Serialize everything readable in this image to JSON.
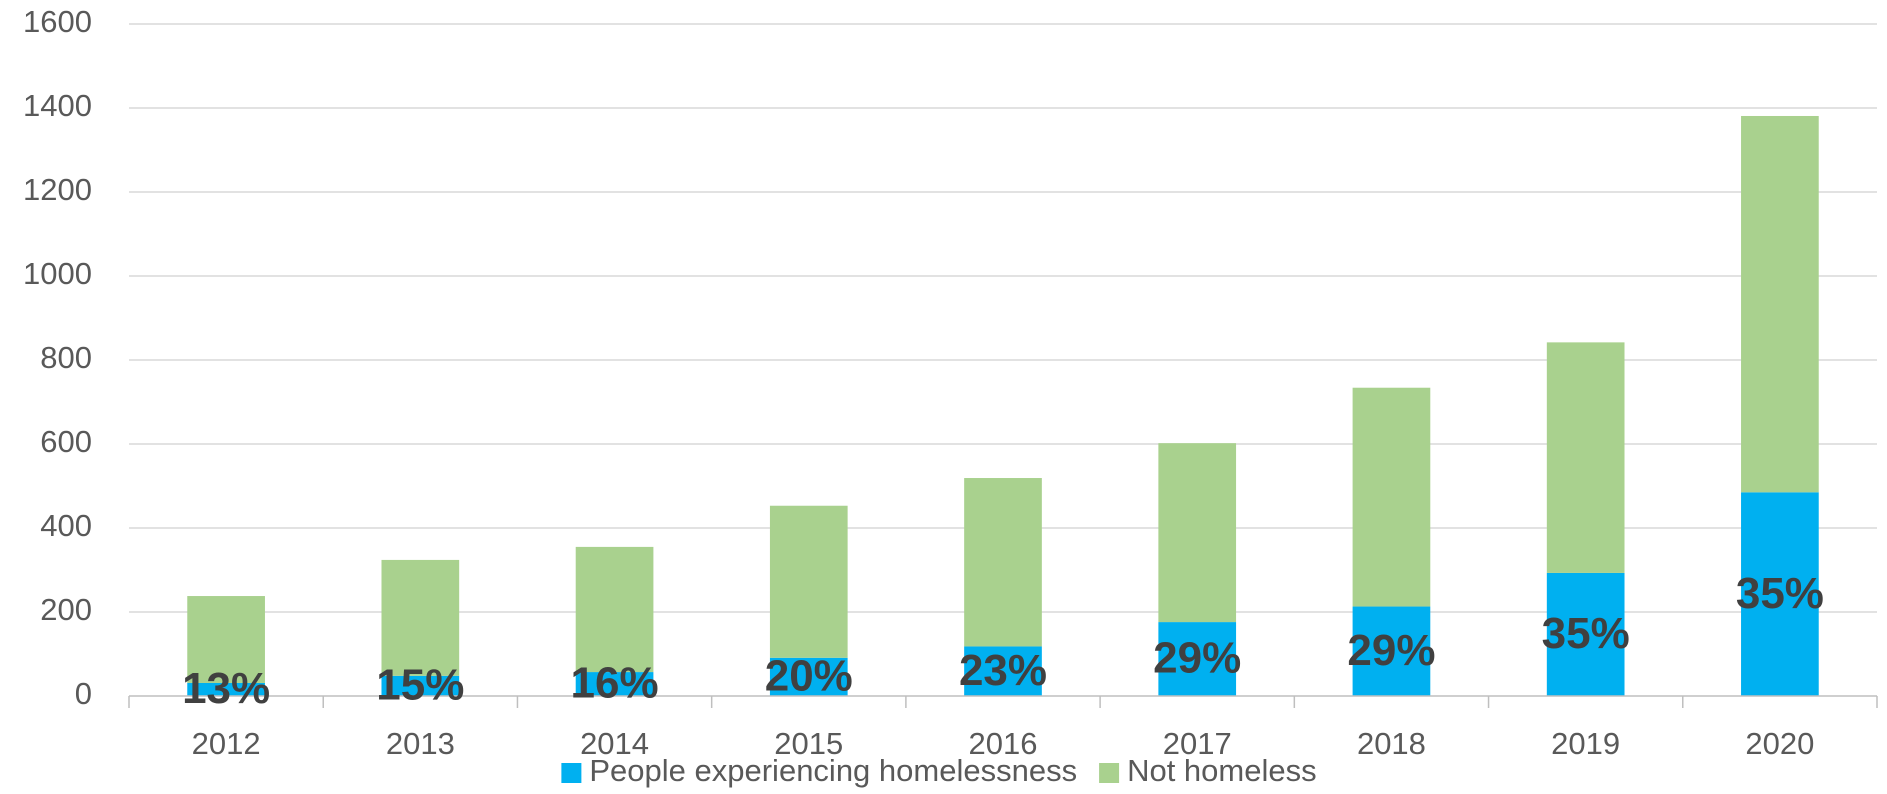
{
  "chart_data": {
    "type": "stacked_bar",
    "categories": [
      "2012",
      "2013",
      "2014",
      "2015",
      "2016",
      "2017",
      "2018",
      "2019",
      "2020"
    ],
    "series": [
      {
        "name": "People experiencing homelessness",
        "color": "#00b0f0",
        "values": [
          31,
          48,
          57,
          91,
          118,
          176,
          213,
          293,
          485
        ],
        "data_labels": [
          "13%",
          "15%",
          "16%",
          "20%",
          "23%",
          "29%",
          "29%",
          "35%",
          "35%"
        ]
      },
      {
        "name": "Not homeless",
        "color": "#a9d18e",
        "values": [
          207,
          276,
          298,
          362,
          401,
          426,
          521,
          549,
          896
        ]
      }
    ],
    "ylim": [
      0,
      1600
    ],
    "yticks": [
      0,
      200,
      400,
      600,
      800,
      1000,
      1200,
      1400,
      1600
    ],
    "grid": true,
    "legend": "bottom"
  }
}
